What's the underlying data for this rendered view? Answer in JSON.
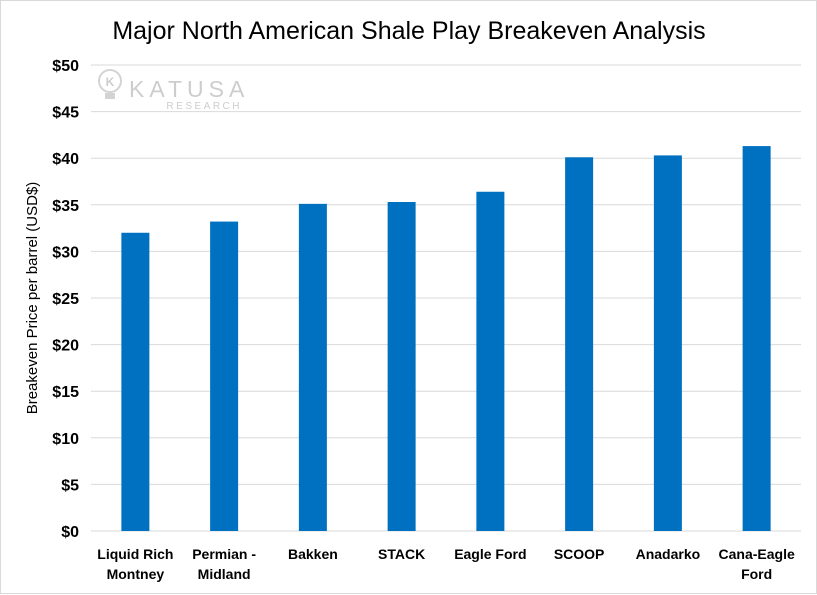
{
  "chart_data": {
    "type": "bar",
    "title": "Major North American Shale Play Breakeven Analysis",
    "ylabel": "Breakeven Price per barrel  (USD$)",
    "xlabel": "",
    "ylim": [
      0,
      50
    ],
    "yticks": [
      0,
      5,
      10,
      15,
      20,
      25,
      30,
      35,
      40,
      45,
      50
    ],
    "ytick_labels": [
      "$0",
      "$5",
      "$10",
      "$15",
      "$20",
      "$25",
      "$30",
      "$35",
      "$40",
      "$45",
      "$50"
    ],
    "grid": true,
    "categories": [
      [
        "Liquid Rich",
        "Montney"
      ],
      [
        "Permian -",
        "Midland"
      ],
      [
        "Bakken"
      ],
      [
        "STACK"
      ],
      [
        "Eagle Ford"
      ],
      [
        "SCOOP"
      ],
      [
        "Anadarko"
      ],
      [
        "Cana-Eagle",
        "Ford"
      ]
    ],
    "values": [
      32.0,
      33.2,
      35.1,
      35.3,
      36.4,
      40.1,
      40.3,
      41.3
    ],
    "bar_color": "#0070c0"
  },
  "watermark": {
    "brand": "KATUSA",
    "sub": "RESEARCH",
    "logo_letter": "K"
  }
}
